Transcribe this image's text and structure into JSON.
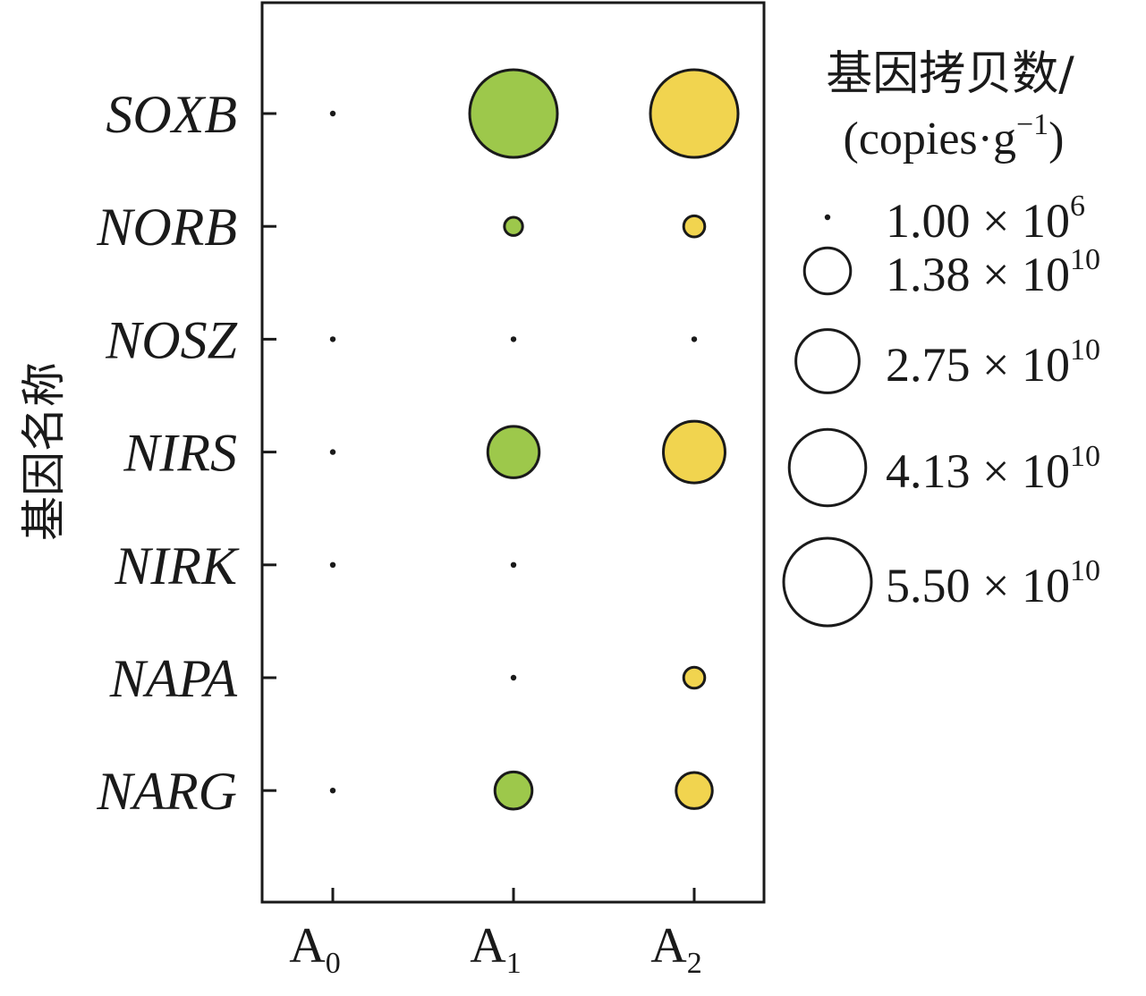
{
  "chart_data": {
    "type": "bubble",
    "xlabel": "",
    "ylabel": "基因名称",
    "categories": [
      {
        "main": "A",
        "sub": "0"
      },
      {
        "main": "A",
        "sub": "1"
      },
      {
        "main": "A",
        "sub": "2"
      }
    ],
    "genes": [
      "SOXB",
      "NORB",
      "NOSZ",
      "NIRS",
      "NIRK",
      "NAPA",
      "NARG"
    ],
    "series_colors": [
      "#1a1a1a",
      "#9dc84b",
      "#f1d44f"
    ],
    "values": [
      [
        1000000.0,
        55000000000.0,
        55000000000.0
      ],
      [
        null,
        1500000000.0,
        2200000000.0
      ],
      [
        1000000.0,
        1000000.0,
        1200000.0
      ],
      [
        1000000.0,
        17500000000.0,
        26000000000.0
      ],
      [
        1000000.0,
        1000000.0,
        null
      ],
      [
        null,
        1000000.0,
        2200000000.0
      ],
      [
        1000000.0,
        8500000000.0,
        8000000000.0
      ]
    ],
    "legend": {
      "title": "基因拷贝数/",
      "unit_prefix": "(copies·g",
      "unit_exp": "−1",
      "unit_suffix": ")",
      "entries": [
        {
          "value": 1000000.0,
          "mantissa": "1.00",
          "times": "×",
          "base": "10",
          "exp": "6"
        },
        {
          "value": 13800000000.0,
          "mantissa": "1.38",
          "times": "×",
          "base": "10",
          "exp": "10"
        },
        {
          "value": 27500000000.0,
          "mantissa": "2.75",
          "times": "×",
          "base": "10",
          "exp": "10"
        },
        {
          "value": 41300000000.0,
          "mantissa": "4.13",
          "times": "×",
          "base": "10",
          "exp": "10"
        },
        {
          "value": 55000000000.0,
          "mantissa": "5.50",
          "times": "×",
          "base": "10",
          "exp": "10"
        }
      ]
    }
  }
}
